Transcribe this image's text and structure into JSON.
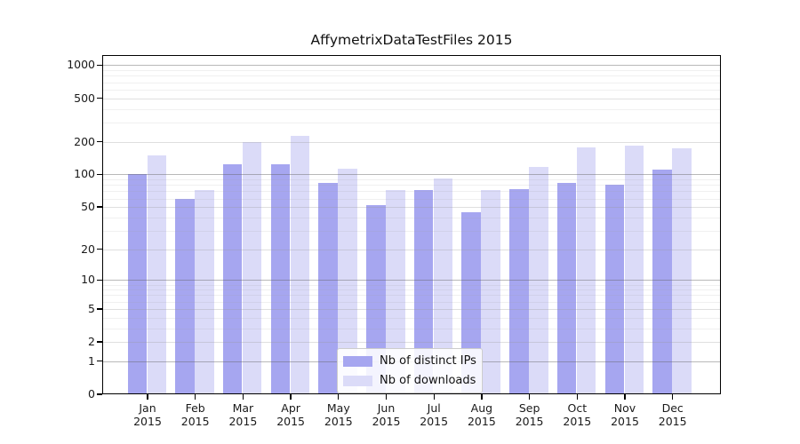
{
  "chart_data": {
    "type": "bar",
    "title": "AffymetrixDataTestFiles 2015",
    "categories": [
      "Jan",
      "Feb",
      "Mar",
      "Apr",
      "May",
      "Jun",
      "Jul",
      "Aug",
      "Sep",
      "Oct",
      "Nov",
      "Dec"
    ],
    "category_year": "2015",
    "series": [
      {
        "name": "Nb of distinct IPs",
        "color": "#a6a6f0",
        "values": [
          100,
          60,
          125,
          125,
          84,
          52,
          72,
          45,
          73,
          84,
          80,
          110
        ]
      },
      {
        "name": "Nb of downloads",
        "color": "#dbdbf8",
        "values": [
          150,
          72,
          198,
          225,
          113,
          72,
          92,
          72,
          118,
          178,
          183,
          175
        ]
      }
    ],
    "y_axis": {
      "scale": "log1p",
      "ticks": [
        0,
        1,
        2,
        5,
        10,
        20,
        50,
        100,
        200,
        500,
        1000
      ],
      "ylim": [
        0,
        1200
      ]
    },
    "legend": {
      "position": "bottom-center"
    },
    "grid": true,
    "grid_on_top_of_bars": true,
    "background": "#ffffff",
    "frame_color": "#000000"
  }
}
